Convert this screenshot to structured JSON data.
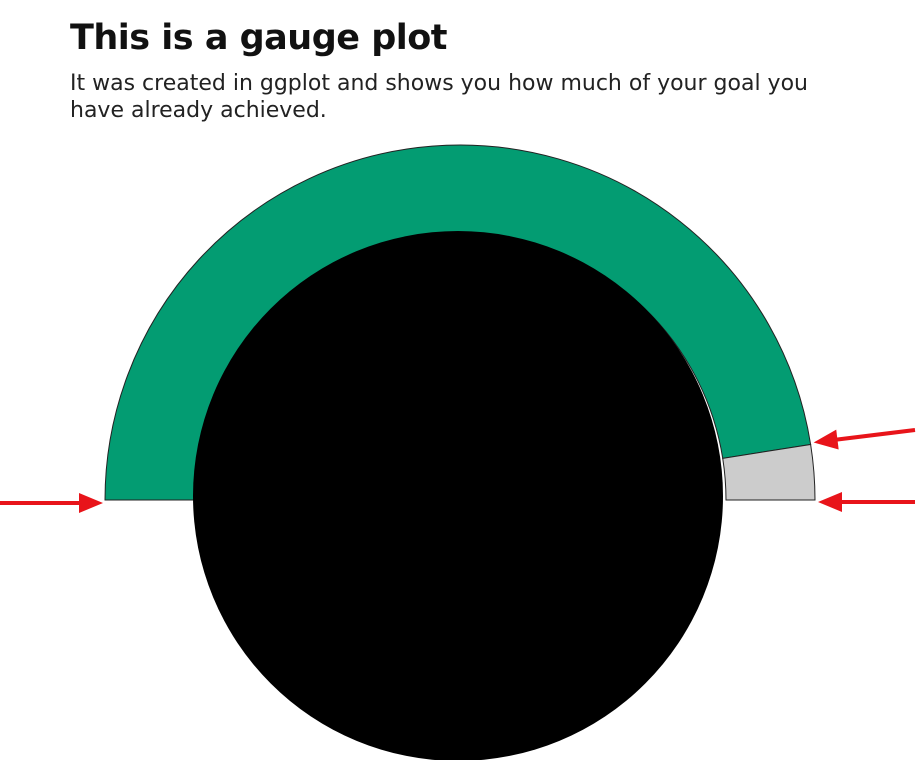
{
  "chart_data": {
    "type": "gauge",
    "title": "This is a gauge plot",
    "subtitle": "It was created in ggplot and shows you how much of your goal you have already achieved.",
    "value": 0.95,
    "range": [
      0,
      1
    ],
    "colors": {
      "achieved": "#039c72",
      "remaining": "#cccccc",
      "center": "#000000",
      "outline": "#222222",
      "arrow": "#e8141a"
    },
    "annotations": [
      "arrow-left-start",
      "arrow-right-value",
      "arrow-right-end"
    ]
  }
}
